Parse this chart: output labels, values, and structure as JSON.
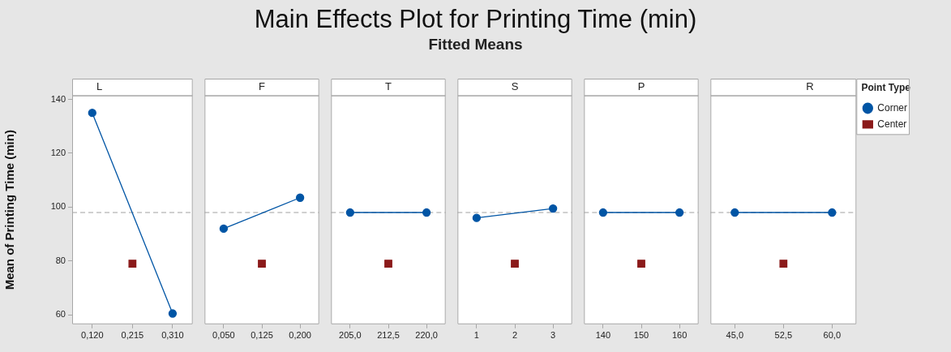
{
  "chart_data": [
    {
      "type": "other",
      "title": "Main Effects Plot for Printing Time (min)",
      "subtitle": "Fitted Means"
    },
    {
      "type": "line",
      "title": "L",
      "ylabel": "Mean of Printing Time (min)",
      "categories": [
        "0,120",
        "0,215",
        "0,310"
      ],
      "ylim": [
        56.5,
        141.5
      ],
      "yticks": [
        60,
        80,
        100,
        120,
        140
      ],
      "ref_lines": [
        {
          "axis": "y",
          "value": 98,
          "color": "#a0a0a0",
          "line_style": "dashed"
        }
      ],
      "series": [
        {
          "color": "#0055a5",
          "values": [
            135,
            null,
            60.5
          ],
          "marker": "circle"
        },
        {
          "color": "#8b1a1a",
          "values": [
            null,
            79,
            null
          ],
          "marker": "square"
        }
      ]
    },
    {
      "type": "line",
      "title": "F",
      "categories": [
        "0,050",
        "0,125",
        "0,200"
      ],
      "ylim": [
        56.5,
        141.5
      ],
      "tick_labels": "x",
      "ref_lines": [
        {
          "axis": "y",
          "value": 98,
          "color": "#a0a0a0",
          "line_style": "dashed"
        }
      ],
      "series": [
        {
          "color": "#0055a5",
          "values": [
            92,
            null,
            103.5
          ],
          "marker": "circle"
        },
        {
          "color": "#8b1a1a",
          "values": [
            null,
            79,
            null
          ],
          "marker": "square"
        }
      ]
    },
    {
      "type": "line",
      "title": "T",
      "categories": [
        "205,0",
        "212,5",
        "220,0"
      ],
      "ylim": [
        56.5,
        141.5
      ],
      "tick_labels": "x",
      "ref_lines": [
        {
          "axis": "y",
          "value": 98,
          "color": "#a0a0a0",
          "line_style": "dashed"
        }
      ],
      "series": [
        {
          "color": "#0055a5",
          "values": [
            98,
            null,
            98
          ],
          "marker": "circle"
        },
        {
          "color": "#8b1a1a",
          "values": [
            null,
            79,
            null
          ],
          "marker": "square"
        }
      ]
    },
    {
      "type": "line",
      "title": "S",
      "categories": [
        "1",
        "2",
        "3"
      ],
      "ylim": [
        56.5,
        141.5
      ],
      "tick_labels": "x",
      "ref_lines": [
        {
          "axis": "y",
          "value": 98,
          "color": "#a0a0a0",
          "line_style": "dashed"
        }
      ],
      "series": [
        {
          "color": "#0055a5",
          "values": [
            96,
            null,
            99.5
          ],
          "marker": "circle"
        },
        {
          "color": "#8b1a1a",
          "values": [
            null,
            79,
            null
          ],
          "marker": "square"
        }
      ]
    },
    {
      "type": "line",
      "title": "P",
      "categories": [
        "140",
        "150",
        "160"
      ],
      "ylim": [
        56.5,
        141.5
      ],
      "tick_labels": "x",
      "ref_lines": [
        {
          "axis": "y",
          "value": 98,
          "color": "#a0a0a0",
          "line_style": "dashed"
        }
      ],
      "series": [
        {
          "color": "#0055a5",
          "values": [
            98,
            null,
            98
          ],
          "marker": "circle"
        },
        {
          "color": "#8b1a1a",
          "values": [
            null,
            79,
            null
          ],
          "marker": "square"
        }
      ]
    },
    {
      "type": "line",
      "title": "R",
      "categories": [
        "45,0",
        "52,5",
        "60,0"
      ],
      "ylim": [
        56.5,
        141.5
      ],
      "tick_labels": "x",
      "legend": "right",
      "legend_title": "Point Type",
      "ref_lines": [
        {
          "axis": "y",
          "value": 98,
          "color": "#a0a0a0",
          "line_style": "dashed"
        }
      ],
      "series": [
        {
          "name": "Corner",
          "color": "#0055a5",
          "values": [
            98,
            null,
            98
          ],
          "marker": "circle"
        },
        {
          "name": "Center",
          "color": "#8b1a1a",
          "values": [
            null,
            79,
            null
          ],
          "marker": "square"
        }
      ]
    }
  ]
}
